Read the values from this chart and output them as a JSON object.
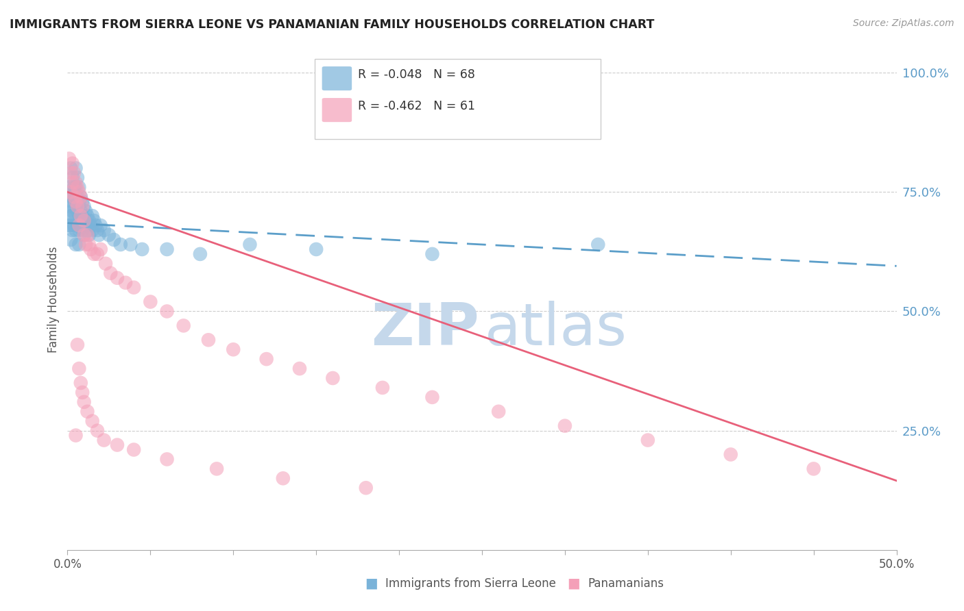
{
  "title": "IMMIGRANTS FROM SIERRA LEONE VS PANAMANIAN FAMILY HOUSEHOLDS CORRELATION CHART",
  "source": "Source: ZipAtlas.com",
  "ylabel": "Family Households",
  "R1": "-0.048",
  "N1": "68",
  "R2": "-0.462",
  "N2": "61",
  "color1": "#7ab3d9",
  "color2": "#f4a0b8",
  "trendline1_color": "#5b9ec9",
  "trendline2_color": "#e8607a",
  "watermark_zip_color": "#c5d8eb",
  "watermark_atlas_color": "#c5d8eb",
  "legend_label1": "Immigrants from Sierra Leone",
  "legend_label2": "Panamanians",
  "ytick_values": [
    0.25,
    0.5,
    0.75,
    1.0
  ],
  "ytick_labels": [
    "25.0%",
    "50.0%",
    "75.0%",
    "100.0%"
  ],
  "xlim": [
    0.0,
    0.5
  ],
  "ylim": [
    0.0,
    1.05
  ],
  "sl_trendline_y0": 0.685,
  "sl_trendline_y1": 0.595,
  "pa_trendline_y0": 0.75,
  "pa_trendline_y1": 0.145
}
